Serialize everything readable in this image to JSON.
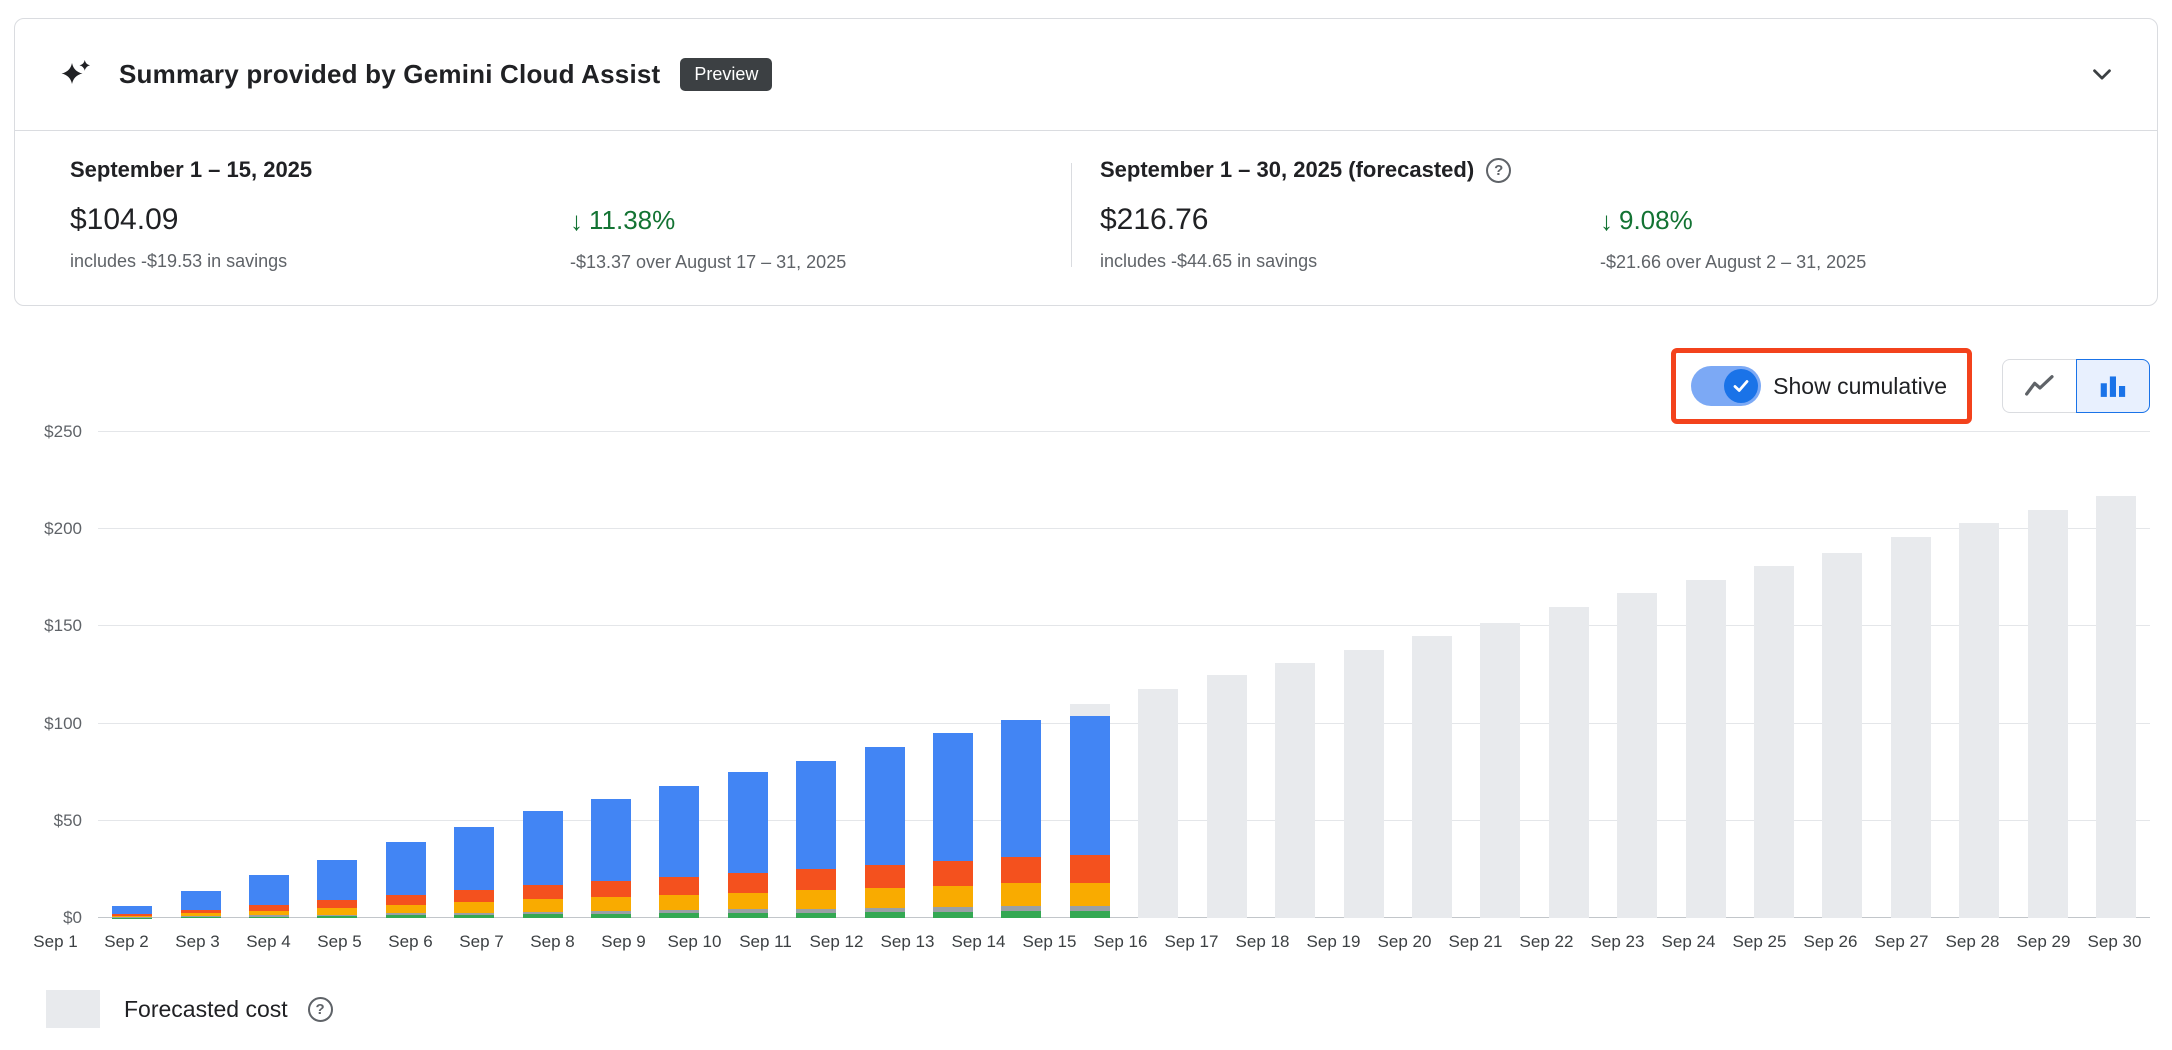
{
  "colors": {
    "text_primary": "#202124",
    "text_secondary": "#5F6368",
    "border": "#DADCE0",
    "badge_bg": "#3C4043",
    "accent_blue": "#1A73E8",
    "percent_green": "#137333",
    "annotation": "#F3421C",
    "toggle_track": "#7CA9F5",
    "toggle_thumb": "#1A73E8",
    "forecast_gray": "#E8EAED"
  },
  "header": {
    "title": "Summary provided by Gemini Cloud Assist",
    "badge": "Preview"
  },
  "summary": {
    "current": {
      "title": "September 1 – 15, 2025",
      "amount": "$104.09",
      "savings": "includes -$19.53 in savings",
      "delta_percent": "11.38%",
      "delta_compare": "-$13.37 over August 17 – 31, 2025"
    },
    "forecast": {
      "title": "September 1 – 30, 2025 (forecasted)",
      "amount": "$216.76",
      "savings": "includes -$44.65 in savings",
      "delta_percent": "9.08%",
      "delta_compare": "-$21.66 over August 2 – 31, 2025"
    }
  },
  "controls": {
    "toggle_label": "Show cumulative",
    "toggle_on": true
  },
  "legend": {
    "forecast_label": "Forecasted cost"
  },
  "chart_data": {
    "type": "bar",
    "stacked": true,
    "grid": true,
    "ylim": [
      0,
      250
    ],
    "yticks": [
      {
        "value": 0,
        "label": "$0"
      },
      {
        "value": 50,
        "label": "$50"
      },
      {
        "value": 100,
        "label": "$100"
      },
      {
        "value": 150,
        "label": "$150"
      },
      {
        "value": 200,
        "label": "$200"
      },
      {
        "value": 250,
        "label": "$250"
      }
    ],
    "colors": {
      "blue": "#4285F4",
      "orange": "#F4511E",
      "yellow": "#F9AB00",
      "gray": "#9AA0A6",
      "green": "#34A853",
      "forecast": "#E8EAED",
      "cap": "#E8EAED"
    },
    "stack_bottom_to_top": [
      {
        "key": "green",
        "fraction": 0.035
      },
      {
        "key": "gray",
        "fraction": 0.025
      },
      {
        "key": "yellow",
        "fraction": 0.115
      },
      {
        "key": "orange",
        "fraction": 0.135
      },
      {
        "key": "blue",
        "fraction": 0.69
      }
    ],
    "bars": [
      {
        "label": "Sep 1",
        "kind": "actual",
        "total": 6
      },
      {
        "label": "Sep 2",
        "kind": "actual",
        "total": 14
      },
      {
        "label": "Sep 3",
        "kind": "actual",
        "total": 22
      },
      {
        "label": "Sep 4",
        "kind": "actual",
        "total": 30
      },
      {
        "label": "Sep 5",
        "kind": "actual",
        "total": 39
      },
      {
        "label": "Sep 6",
        "kind": "actual",
        "total": 47
      },
      {
        "label": "Sep 7",
        "kind": "actual",
        "total": 55
      },
      {
        "label": "Sep 8",
        "kind": "actual",
        "total": 61
      },
      {
        "label": "Sep 9",
        "kind": "actual",
        "total": 68
      },
      {
        "label": "Sep 10",
        "kind": "actual",
        "total": 75
      },
      {
        "label": "Sep 11",
        "kind": "actual",
        "total": 81
      },
      {
        "label": "Sep 12",
        "kind": "actual",
        "total": 88
      },
      {
        "label": "Sep 13",
        "kind": "actual",
        "total": 95
      },
      {
        "label": "Sep 14",
        "kind": "actual",
        "total": 102
      },
      {
        "label": "Sep 15",
        "kind": "actual",
        "total": 110,
        "cap": 6
      },
      {
        "label": "Sep 16",
        "kind": "forecast",
        "total": 118
      },
      {
        "label": "Sep 17",
        "kind": "forecast",
        "total": 125
      },
      {
        "label": "Sep 18",
        "kind": "forecast",
        "total": 131
      },
      {
        "label": "Sep 19",
        "kind": "forecast",
        "total": 138
      },
      {
        "label": "Sep 20",
        "kind": "forecast",
        "total": 145
      },
      {
        "label": "Sep 21",
        "kind": "forecast",
        "total": 152
      },
      {
        "label": "Sep 22",
        "kind": "forecast",
        "total": 160
      },
      {
        "label": "Sep 23",
        "kind": "forecast",
        "total": 167
      },
      {
        "label": "Sep 24",
        "kind": "forecast",
        "total": 174
      },
      {
        "label": "Sep 25",
        "kind": "forecast",
        "total": 181
      },
      {
        "label": "Sep 26",
        "kind": "forecast",
        "total": 188
      },
      {
        "label": "Sep 27",
        "kind": "forecast",
        "total": 196
      },
      {
        "label": "Sep 28",
        "kind": "forecast",
        "total": 203
      },
      {
        "label": "Sep 29",
        "kind": "forecast",
        "total": 210
      },
      {
        "label": "Sep 30",
        "kind": "forecast",
        "total": 217
      }
    ]
  }
}
